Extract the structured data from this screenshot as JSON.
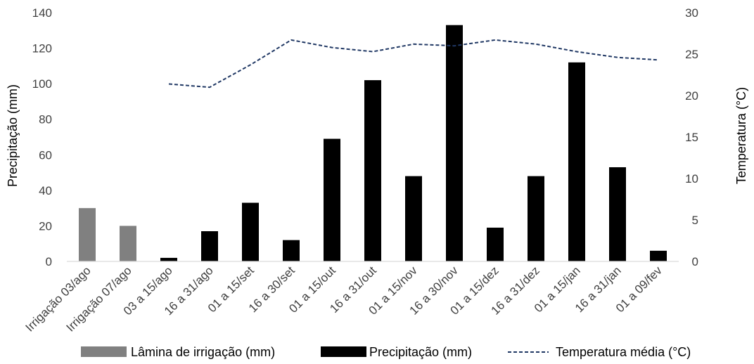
{
  "chart_data": {
    "type": "bar",
    "categories": [
      "Irrigação 03/ago",
      "Irrigação 07/ago",
      "03 a 15/ago",
      "16 a 31/ago",
      "01 a 15/set",
      "16 a 30/set",
      "01 a 15/out",
      "16 a 31/out",
      "01 a 15/nov",
      "16 a 30/nov",
      "01 a 15/dez",
      "16 a 31/dez",
      "01 a 15/jan",
      "16 a 31/jan",
      "01 a 09/fev"
    ],
    "series": [
      {
        "name": "Lâmina de irrigação (mm)",
        "axis": "left",
        "kind": "bar",
        "color": "#808080",
        "values": [
          30,
          20,
          null,
          null,
          null,
          null,
          null,
          null,
          null,
          null,
          null,
          null,
          null,
          null,
          null
        ]
      },
      {
        "name": "Precipitação (mm)",
        "axis": "left",
        "kind": "bar",
        "color": "#000000",
        "values": [
          null,
          null,
          2,
          17,
          33,
          12,
          69,
          102,
          48,
          133,
          19,
          48,
          112,
          53,
          6
        ]
      },
      {
        "name": "Temperatura média (°C)",
        "axis": "right",
        "kind": "line",
        "style": "dashed",
        "color": "#203864",
        "values": [
          null,
          null,
          21.4,
          21.0,
          23.7,
          26.7,
          25.8,
          25.3,
          26.2,
          26.0,
          26.7,
          26.2,
          25.3,
          24.6,
          24.3
        ]
      }
    ],
    "ylabel": "Precipitação (mm)",
    "y2label": "Temperatura (°C)",
    "ylim": [
      0,
      140
    ],
    "y2lim": [
      0,
      30
    ],
    "yticks": [
      "0",
      "20",
      "40",
      "60",
      "80",
      "100",
      "120",
      "140"
    ],
    "y2ticks": [
      "0",
      "5",
      "10",
      "15",
      "20",
      "25",
      "30"
    ],
    "grid": false,
    "legend_position": "bottom"
  }
}
